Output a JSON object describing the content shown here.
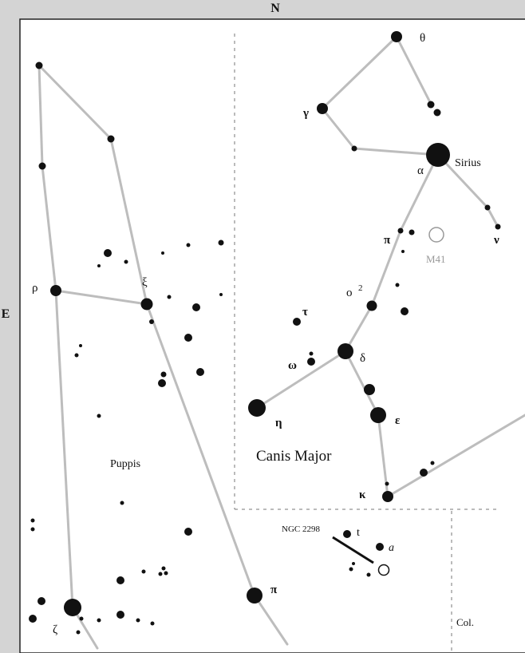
{
  "compass": {
    "north": "N",
    "east": "E"
  },
  "constellations": {
    "canis_major": "Canis Major",
    "puppis": "Puppis",
    "columba": "Col."
  },
  "deep_sky": {
    "m41": "M41",
    "ngc2298": "NGC 2298"
  },
  "star_labels": {
    "theta": "θ",
    "gamma": "γ",
    "alpha": "α",
    "sirius": "Sirius",
    "nu": "ν",
    "pi_cma": "π",
    "omicron2": "ο",
    "omicron2_sup": "2",
    "tau": "τ",
    "omega": "ω",
    "delta": "δ",
    "eta": "η",
    "epsilon": "ε",
    "kappa": "κ",
    "rho": "ρ",
    "xi": "ξ",
    "zeta": "ζ",
    "pi_pup": "π",
    "t": "t",
    "a": "a"
  },
  "colors": {
    "background": "#d4d4d4",
    "map": "#ffffff",
    "lines": "#bdbdbd",
    "stars": "#111111",
    "cluster": "#999999",
    "boundary": "#777777"
  }
}
